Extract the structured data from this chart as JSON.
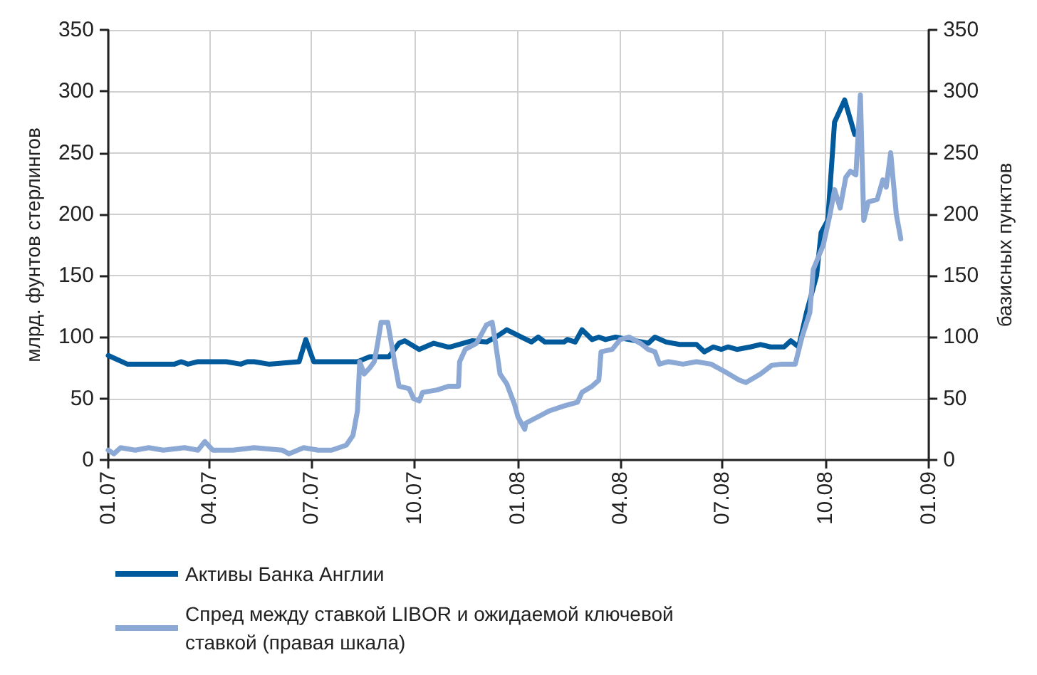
{
  "chart_data": {
    "type": "line",
    "ylabel": "млрд. фунтов стерлингов",
    "y2label": "базисных пунктов",
    "xlim": [
      "2007-01-01",
      "2009-01-01"
    ],
    "xticks": [
      {
        "value": "2007-01-01",
        "label": "01.07"
      },
      {
        "value": "2007-04-01",
        "label": "04.07"
      },
      {
        "value": "2007-07-01",
        "label": "07.07"
      },
      {
        "value": "2007-10-01",
        "label": "10.07"
      },
      {
        "value": "2008-01-01",
        "label": "01.08"
      },
      {
        "value": "2008-04-01",
        "label": "04.08"
      },
      {
        "value": "2008-07-01",
        "label": "07.08"
      },
      {
        "value": "2008-10-01",
        "label": "10.08"
      },
      {
        "value": "2009-01-01",
        "label": "01.09"
      }
    ],
    "ylim": [
      0,
      350
    ],
    "yticks": [
      0,
      50,
      100,
      150,
      200,
      250,
      300,
      350
    ],
    "y2lim": [
      0,
      350
    ],
    "y2ticks": [
      0,
      50,
      100,
      150,
      200,
      250,
      300,
      350
    ],
    "grid": true,
    "legend": "bottom",
    "marker": "none",
    "line_style": "solid",
    "series": [
      {
        "name": "Активы Банка Англии",
        "color": "#005a9c",
        "x": [
          "2007-01-01",
          "2007-01-18",
          "2007-03-01",
          "2007-03-07",
          "2007-03-13",
          "2007-03-22",
          "2007-04-16",
          "2007-04-29",
          "2007-05-05",
          "2007-05-11",
          "2007-05-24",
          "2007-06-20",
          "2007-06-26",
          "2007-07-03",
          "2007-08-11",
          "2007-08-22",
          "2007-09-08",
          "2007-09-17",
          "2007-09-22",
          "2007-10-05",
          "2007-10-18",
          "2007-10-30",
          "2007-11-02",
          "2007-11-21",
          "2007-12-04",
          "2007-12-14",
          "2007-12-22",
          "2008-01-04",
          "2008-01-13",
          "2008-01-19",
          "2008-01-25",
          "2008-02-11",
          "2008-02-14",
          "2008-02-21",
          "2008-02-27",
          "2008-03-07",
          "2008-03-13",
          "2008-03-19",
          "2008-03-28",
          "2008-04-09",
          "2008-04-26",
          "2008-05-02",
          "2008-05-12",
          "2008-05-24",
          "2008-06-08",
          "2008-06-15",
          "2008-06-23",
          "2008-06-30",
          "2008-07-06",
          "2008-07-14",
          "2008-07-26",
          "2008-08-04",
          "2008-08-13",
          "2008-08-25",
          "2008-08-31",
          "2008-09-07",
          "2008-09-14",
          "2008-09-23",
          "2008-09-27",
          "2008-10-03",
          "2008-10-09",
          "2008-10-18",
          "2008-10-27"
        ],
        "values": [
          85,
          78,
          78,
          80,
          78,
          80,
          80,
          78,
          80,
          80,
          78,
          80,
          98,
          80,
          80,
          84,
          84,
          95,
          97,
          90,
          95,
          92,
          92,
          97,
          96,
          101,
          106,
          100,
          96,
          100,
          96,
          96,
          98,
          96,
          106,
          98,
          100,
          98,
          100,
          98,
          95,
          100,
          96,
          94,
          94,
          88,
          92,
          90,
          92,
          90,
          92,
          94,
          92,
          92,
          97,
          92,
          120,
          150,
          185,
          195,
          275,
          293,
          265
        ]
      },
      {
        "name": "Спред между ставкой LIBOR и ожидаемой ключевой ставкой (правая шкала)",
        "color": "#8ca8d4",
        "axis": "y2",
        "x": [
          "2007-01-01",
          "2007-01-06",
          "2007-01-12",
          "2007-01-25",
          "2007-02-06",
          "2007-02-19",
          "2007-03-10",
          "2007-03-22",
          "2007-03-28",
          "2007-04-04",
          "2007-04-22",
          "2007-05-11",
          "2007-06-05",
          "2007-06-11",
          "2007-06-24",
          "2007-07-07",
          "2007-07-19",
          "2007-08-01",
          "2007-08-07",
          "2007-08-11",
          "2007-08-13",
          "2007-08-17",
          "2007-08-22",
          "2007-08-26",
          "2007-08-29",
          "2007-09-01",
          "2007-09-07",
          "2007-09-13",
          "2007-09-17",
          "2007-09-26",
          "2007-09-30",
          "2007-10-05",
          "2007-10-08",
          "2007-10-21",
          "2007-10-31",
          "2007-11-09",
          "2007-11-10",
          "2007-11-15",
          "2007-11-25",
          "2007-12-04",
          "2007-12-09",
          "2007-12-12",
          "2007-12-16",
          "2007-12-22",
          "2007-12-29",
          "2008-01-01",
          "2008-01-04",
          "2008-01-07",
          "2008-01-08",
          "2008-01-29",
          "2008-02-11",
          "2008-02-23",
          "2008-02-27",
          "2008-03-07",
          "2008-03-13",
          "2008-03-15",
          "2008-03-25",
          "2008-04-01",
          "2008-04-09",
          "2008-04-19",
          "2008-04-26",
          "2008-05-02",
          "2008-05-06",
          "2008-05-14",
          "2008-05-27",
          "2008-06-08",
          "2008-06-21",
          "2008-07-03",
          "2008-07-16",
          "2008-07-22",
          "2008-08-04",
          "2008-08-14",
          "2008-08-23",
          "2008-09-04",
          "2008-09-10",
          "2008-09-17",
          "2008-09-20",
          "2008-09-29",
          "2008-10-05",
          "2008-10-09",
          "2008-10-14",
          "2008-10-19",
          "2008-10-23",
          "2008-10-28",
          "2008-11-01",
          "2008-11-04",
          "2008-11-08",
          "2008-11-16",
          "2008-11-21",
          "2008-11-24",
          "2008-11-28",
          "2008-12-03",
          "2008-12-07"
        ],
        "values": [
          8,
          5,
          10,
          8,
          10,
          8,
          10,
          8,
          15,
          8,
          8,
          10,
          8,
          5,
          10,
          8,
          8,
          12,
          20,
          40,
          80,
          70,
          75,
          80,
          95,
          112,
          112,
          80,
          60,
          58,
          50,
          48,
          55,
          57,
          60,
          60,
          80,
          90,
          95,
          110,
          112,
          95,
          70,
          62,
          45,
          35,
          30,
          25,
          30,
          40,
          44,
          47,
          55,
          60,
          65,
          88,
          90,
          98,
          100,
          95,
          90,
          88,
          78,
          80,
          78,
          80,
          78,
          72,
          65,
          63,
          70,
          77,
          78,
          78,
          100,
          120,
          155,
          175,
          200,
          220,
          205,
          230,
          235,
          232,
          297,
          195,
          210,
          212,
          228,
          222,
          250,
          200,
          180
        ]
      }
    ]
  }
}
